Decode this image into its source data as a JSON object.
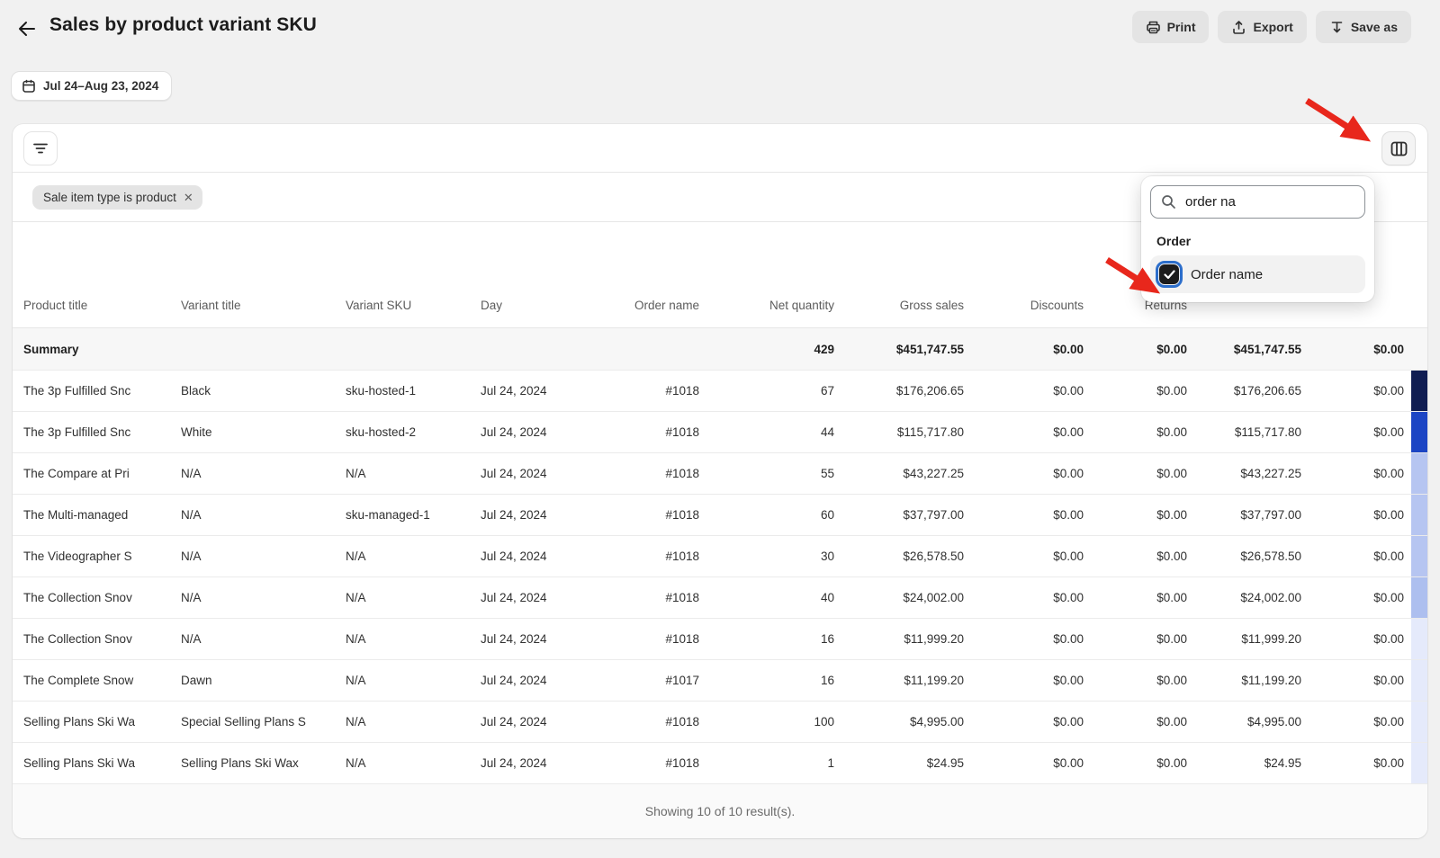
{
  "header": {
    "title": "Sales by product variant SKU",
    "back_icon": "back-arrow",
    "actions": {
      "print": "Print",
      "export": "Export",
      "save_as": "Save as"
    }
  },
  "date_range": {
    "label": "Jul 24–Aug 23, 2024"
  },
  "filters": {
    "tag_label": "Sale item type is product"
  },
  "columns_popover": {
    "search_value": "order na",
    "section_label": "Order",
    "option": {
      "label": "Order name",
      "checked": true
    }
  },
  "table": {
    "headers": [
      "Product title",
      "Variant title",
      "Variant SKU",
      "Day",
      "Order name",
      "Net quantity",
      "Gross sales",
      "Discounts",
      "Returns",
      "",
      ""
    ],
    "summary": [
      "Summary",
      "",
      "",
      "",
      "",
      "429",
      "$451,747.55",
      "$0.00",
      "$0.00",
      "$451,747.55",
      "$0.00"
    ],
    "rows": [
      [
        "The 3p Fulfilled Snc",
        "Black",
        "sku-hosted-1",
        "Jul 24, 2024",
        "#1018",
        "67",
        "$176,206.65",
        "$0.00",
        "$0.00",
        "$176,206.65",
        "$0.00"
      ],
      [
        "The 3p Fulfilled Snc",
        "White",
        "sku-hosted-2",
        "Jul 24, 2024",
        "#1018",
        "44",
        "$115,717.80",
        "$0.00",
        "$0.00",
        "$115,717.80",
        "$0.00"
      ],
      [
        "The Compare at Pri",
        "N/A",
        "N/A",
        "Jul 24, 2024",
        "#1018",
        "55",
        "$43,227.25",
        "$0.00",
        "$0.00",
        "$43,227.25",
        "$0.00"
      ],
      [
        "The Multi-managed",
        "N/A",
        "sku-managed-1",
        "Jul 24, 2024",
        "#1018",
        "60",
        "$37,797.00",
        "$0.00",
        "$0.00",
        "$37,797.00",
        "$0.00"
      ],
      [
        "The Videographer S",
        "N/A",
        "N/A",
        "Jul 24, 2024",
        "#1018",
        "30",
        "$26,578.50",
        "$0.00",
        "$0.00",
        "$26,578.50",
        "$0.00"
      ],
      [
        "The Collection Snov",
        "N/A",
        "N/A",
        "Jul 24, 2024",
        "#1018",
        "40",
        "$24,002.00",
        "$0.00",
        "$0.00",
        "$24,002.00",
        "$0.00"
      ],
      [
        "The Collection Snov",
        "N/A",
        "N/A",
        "Jul 24, 2024",
        "#1018",
        "16",
        "$11,999.20",
        "$0.00",
        "$0.00",
        "$11,999.20",
        "$0.00"
      ],
      [
        "The Complete Snow",
        "Dawn",
        "N/A",
        "Jul 24, 2024",
        "#1017",
        "16",
        "$11,199.20",
        "$0.00",
        "$0.00",
        "$11,199.20",
        "$0.00"
      ],
      [
        "Selling Plans Ski Wa",
        "Special Selling Plans S",
        "N/A",
        "Jul 24, 2024",
        "#1018",
        "100",
        "$4,995.00",
        "$0.00",
        "$0.00",
        "$4,995.00",
        "$0.00"
      ],
      [
        "Selling Plans Ski Wa",
        "Selling Plans Ski Wax",
        "N/A",
        "Jul 24, 2024",
        "#1018",
        "1",
        "$24.95",
        "$0.00",
        "$0.00",
        "$24.95",
        "$0.00"
      ]
    ],
    "strip_colors": [
      "#101d52",
      "#1c45c4",
      "#b6c5f1",
      "#b6c5f1",
      "#b6c5f1",
      "#adbfef",
      "#e5eafb",
      "#e5eafb",
      "#e5eafb",
      "#e5eafb"
    ],
    "footer": "Showing 10 of 10 result(s)."
  },
  "colors": {
    "arrow": "#e8271c",
    "checkbox_fill": "#1c1c1c",
    "checkbox_ring": "#2c6ecb",
    "summary_bg": "#f7f7f7",
    "page_bg": "#f1f1f1"
  },
  "annotations": {
    "arrow_1_target": "columns-button",
    "arrow_2_target": "order-name-checkbox"
  }
}
